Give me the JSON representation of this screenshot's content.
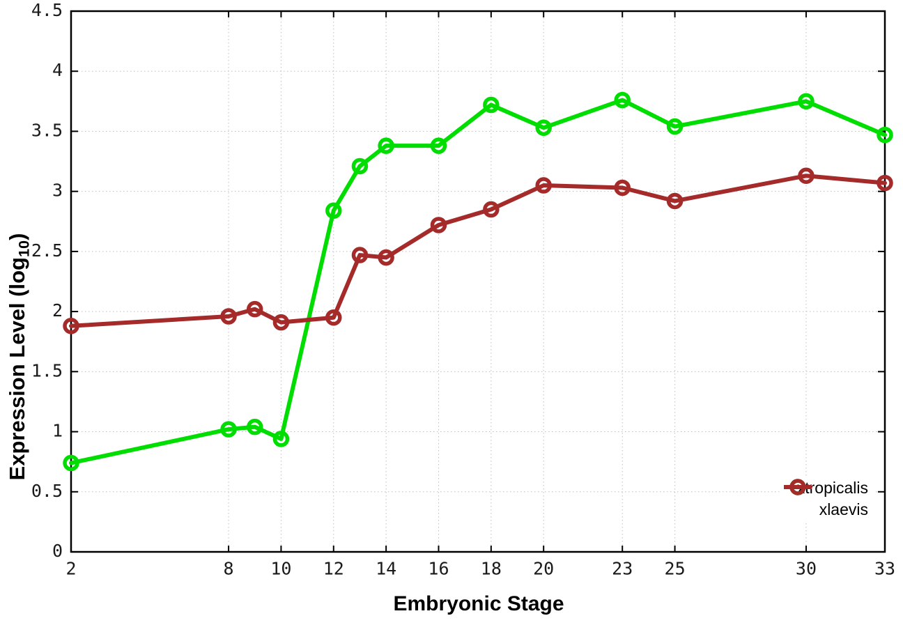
{
  "chart_data": {
    "type": "line",
    "title": "",
    "xlabel": "Embryonic Stage",
    "ylabel_main": "Expression Level (log",
    "ylabel_sub": "10",
    "ylabel_close": ")",
    "xlim": [
      2,
      33
    ],
    "ylim": [
      0,
      4.5
    ],
    "grid": true,
    "legend_position": "bottom-right",
    "x_ticks": [
      2,
      8,
      10,
      12,
      14,
      16,
      18,
      20,
      23,
      25,
      30,
      33
    ],
    "x_tick_labels": [
      "2",
      "8",
      "10",
      "12",
      "14",
      "16",
      "18",
      "20",
      "23",
      "25",
      "30",
      "33"
    ],
    "y_ticks": [
      0,
      0.5,
      1,
      1.5,
      2,
      2.5,
      3,
      3.5,
      4,
      4.5
    ],
    "y_tick_labels": [
      "0",
      "0.5",
      "1",
      "1.5",
      "2",
      "2.5",
      "3",
      "3.5",
      "4",
      "4.5"
    ],
    "x": [
      2,
      8,
      9,
      10,
      12,
      13,
      14,
      16,
      18,
      20,
      23,
      25,
      30,
      33
    ],
    "series": [
      {
        "name": "xtropicalis",
        "color": "#00dd00",
        "values": [
          0.74,
          1.02,
          1.04,
          0.94,
          2.84,
          3.21,
          3.38,
          3.38,
          3.72,
          3.53,
          3.76,
          3.54,
          3.75,
          3.47
        ]
      },
      {
        "name": "xlaevis",
        "color": "#a52a2a",
        "values": [
          1.88,
          1.96,
          2.02,
          1.91,
          1.95,
          2.47,
          2.45,
          2.72,
          2.85,
          3.05,
          3.03,
          2.92,
          3.13,
          3.07
        ]
      }
    ],
    "frame_color": "#000000",
    "grid_color": "#bfbfbf",
    "tick_label_color": "#1a1a1a"
  }
}
